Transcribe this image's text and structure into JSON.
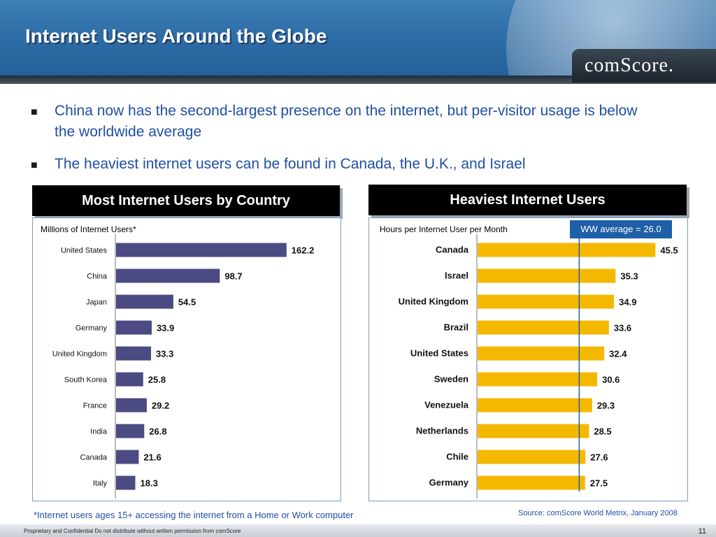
{
  "header": {
    "title": "Internet Users Around the Globe",
    "logo": "comScore."
  },
  "bullets": [
    "China now has the second-largest presence on the internet, but per-visitor usage is below the worldwide average",
    "The heaviest internet users can be found in Canada, the U.K., and Israel"
  ],
  "left_panel": {
    "title": "Most Internet Users by Country",
    "subtitle": "Millions of Internet Users*"
  },
  "right_panel": {
    "title": "Heaviest Internet Users",
    "subtitle": "Hours per Internet User per Month",
    "ww_badge": "WW average = 26.0"
  },
  "footnote": "*Internet  users ages 15+ accessing the internet from a Home or Work computer",
  "source": "Source:  comScore World Metrix, January 2008",
  "footer": {
    "confidential": "Proprietary and Confidential Do not distribute without written permission from comScore",
    "page": "11"
  },
  "colors": {
    "left_bar": "#4b4a82",
    "right_bar": "#f5b800",
    "ww_line": "#1f5fa8",
    "header": "#2f6ea8"
  },
  "chart_data": [
    {
      "type": "bar",
      "orientation": "horizontal",
      "title": "Most Internet Users by Country",
      "ylabel": "Millions of Internet Users*",
      "categories": [
        "United States",
        "China",
        "Japan",
        "Germany",
        "United Kingdom",
        "South Korea",
        "France",
        "India",
        "Canada",
        "Italy"
      ],
      "values": [
        162.2,
        98.7,
        54.5,
        33.9,
        33.3,
        25.8,
        29.2,
        26.8,
        21.6,
        18.3
      ],
      "xlim": [
        0,
        165
      ]
    },
    {
      "type": "bar",
      "orientation": "horizontal",
      "title": "Heaviest Internet Users",
      "ylabel": "Hours per Internet User per Month",
      "categories": [
        "Canada",
        "Israel",
        "United Kingdom",
        "Brazil",
        "United States",
        "Sweden",
        "Venezuela",
        "Netherlands",
        "Chile",
        "Germany"
      ],
      "values": [
        45.5,
        35.3,
        34.9,
        33.6,
        32.4,
        30.6,
        29.3,
        28.5,
        27.6,
        27.5
      ],
      "reference_line": {
        "label": "WW average = 26.0",
        "value": 26.0
      },
      "xlim": [
        0,
        46.5
      ]
    }
  ]
}
